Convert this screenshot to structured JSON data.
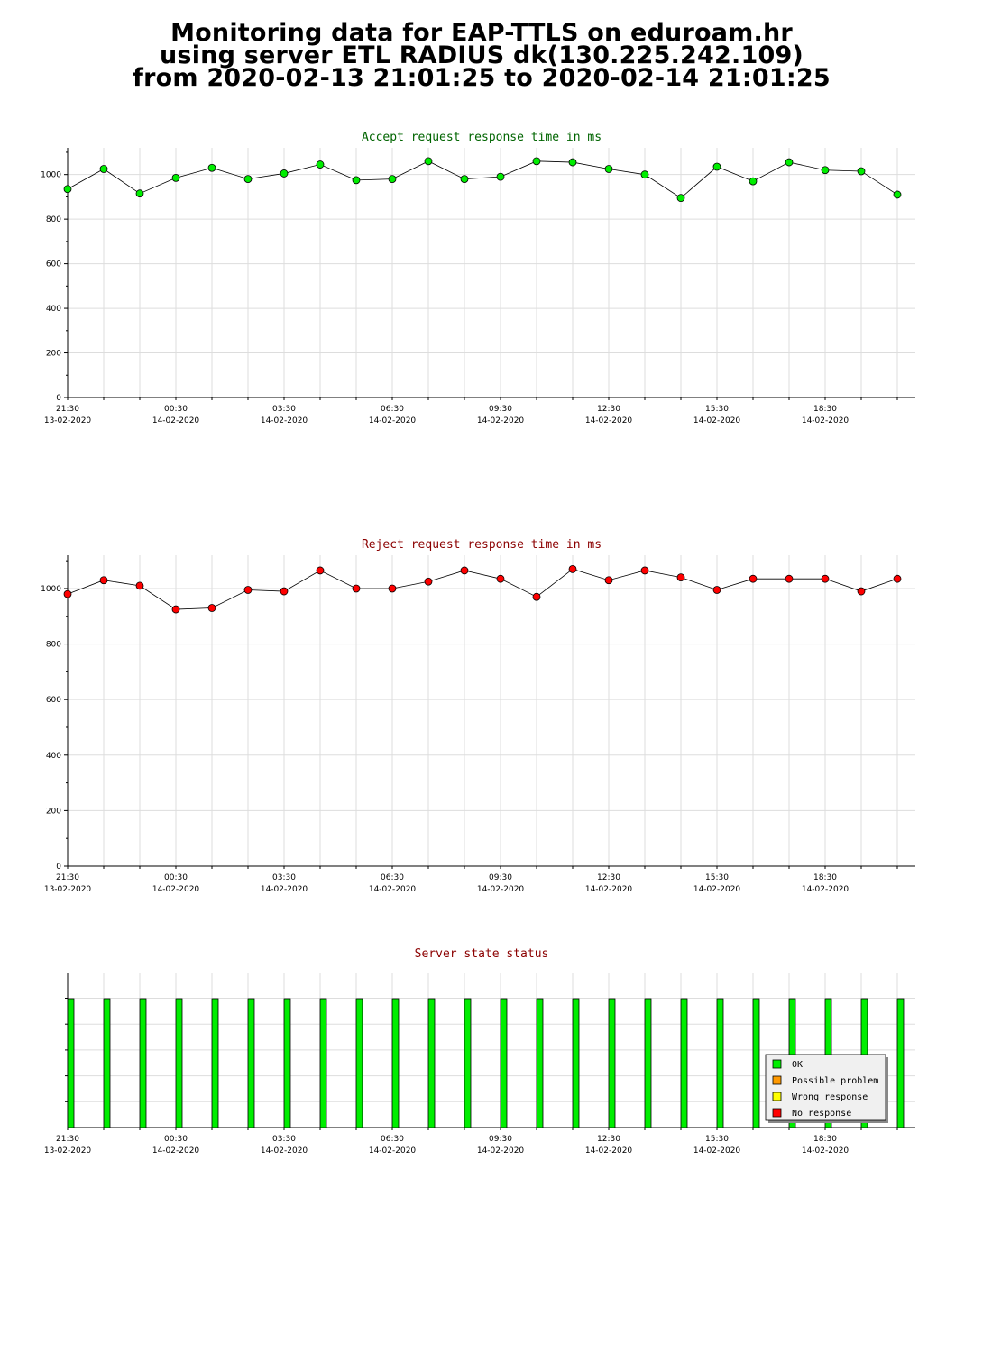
{
  "title_lines": [
    "Monitoring data for EAP-TTLS on eduroam.hr",
    "using server ETL RADIUS dk(130.225.242.109)",
    "from 2020-02-13 21:01:25 to 2020-02-14 21:01:25"
  ],
  "colors": {
    "accept_title": "#006400",
    "reject_title": "#8b0000",
    "status_title": "#8b0000",
    "accept_marker": "#00ee00",
    "reject_marker": "#ff0000",
    "ok": "#00ee00",
    "possible_problem": "#ff9900",
    "wrong_response": "#ffff00",
    "no_response": "#ff0000",
    "grid": "#dddddd"
  },
  "x_ticks": [
    {
      "time": "21:30",
      "date": "13-02-2020"
    },
    {
      "time": "00:30",
      "date": "14-02-2020"
    },
    {
      "time": "03:30",
      "date": "14-02-2020"
    },
    {
      "time": "06:30",
      "date": "14-02-2020"
    },
    {
      "time": "09:30",
      "date": "14-02-2020"
    },
    {
      "time": "12:30",
      "date": "14-02-2020"
    },
    {
      "time": "15:30",
      "date": "14-02-2020"
    },
    {
      "time": "18:30",
      "date": "14-02-2020"
    }
  ],
  "chart_data": [
    {
      "type": "line",
      "title": "Accept request response time in ms",
      "x": [
        "21:30",
        "22:30",
        "23:30",
        "00:30",
        "01:30",
        "02:30",
        "03:30",
        "04:30",
        "05:30",
        "06:30",
        "07:30",
        "08:30",
        "09:30",
        "10:30",
        "11:30",
        "12:30",
        "13:30",
        "14:30",
        "15:30",
        "16:30",
        "17:30",
        "18:30",
        "19:30",
        "20:30"
      ],
      "values": [
        935,
        1025,
        915,
        985,
        1030,
        980,
        1005,
        1045,
        975,
        980,
        1060,
        980,
        990,
        1060,
        1055,
        1025,
        1000,
        895,
        1035,
        970,
        1055,
        1020,
        1015,
        910
      ],
      "ylim": [
        0,
        1120
      ],
      "yticks": [
        0,
        200,
        400,
        600,
        800,
        1000
      ],
      "grid": true
    },
    {
      "type": "line",
      "title": "Reject request response time in ms",
      "x": [
        "21:30",
        "22:30",
        "23:30",
        "00:30",
        "01:30",
        "02:30",
        "03:30",
        "04:30",
        "05:30",
        "06:30",
        "07:30",
        "08:30",
        "09:30",
        "10:30",
        "11:30",
        "12:30",
        "13:30",
        "14:30",
        "15:30",
        "16:30",
        "17:30",
        "18:30",
        "19:30",
        "20:30"
      ],
      "values": [
        980,
        1030,
        1010,
        925,
        930,
        995,
        990,
        1065,
        1000,
        1000,
        1025,
        1065,
        1035,
        970,
        1070,
        1030,
        1065,
        1040,
        995,
        1035,
        1035,
        1035,
        990,
        1035
      ],
      "ylim": [
        0,
        1120
      ],
      "yticks": [
        0,
        200,
        400,
        600,
        800,
        1000
      ],
      "grid": true
    },
    {
      "type": "bar",
      "title": "Server state status",
      "x": [
        "21:30",
        "22:30",
        "23:30",
        "00:30",
        "01:30",
        "02:30",
        "03:30",
        "04:30",
        "05:30",
        "06:30",
        "07:30",
        "08:30",
        "09:30",
        "10:30",
        "11:30",
        "12:30",
        "13:30",
        "14:30",
        "15:30",
        "16:30",
        "17:30",
        "18:30",
        "19:30",
        "20:30"
      ],
      "states": [
        "OK",
        "OK",
        "OK",
        "OK",
        "OK",
        "OK",
        "OK",
        "OK",
        "OK",
        "OK",
        "OK",
        "OK",
        "OK",
        "OK",
        "OK",
        "OK",
        "OK",
        "OK",
        "OK",
        "OK",
        "OK",
        "OK",
        "OK",
        "OK"
      ],
      "legend": [
        "OK",
        "Possible problem",
        "Wrong response",
        "No response"
      ],
      "legend_position": "bottom-right",
      "grid": true
    }
  ]
}
